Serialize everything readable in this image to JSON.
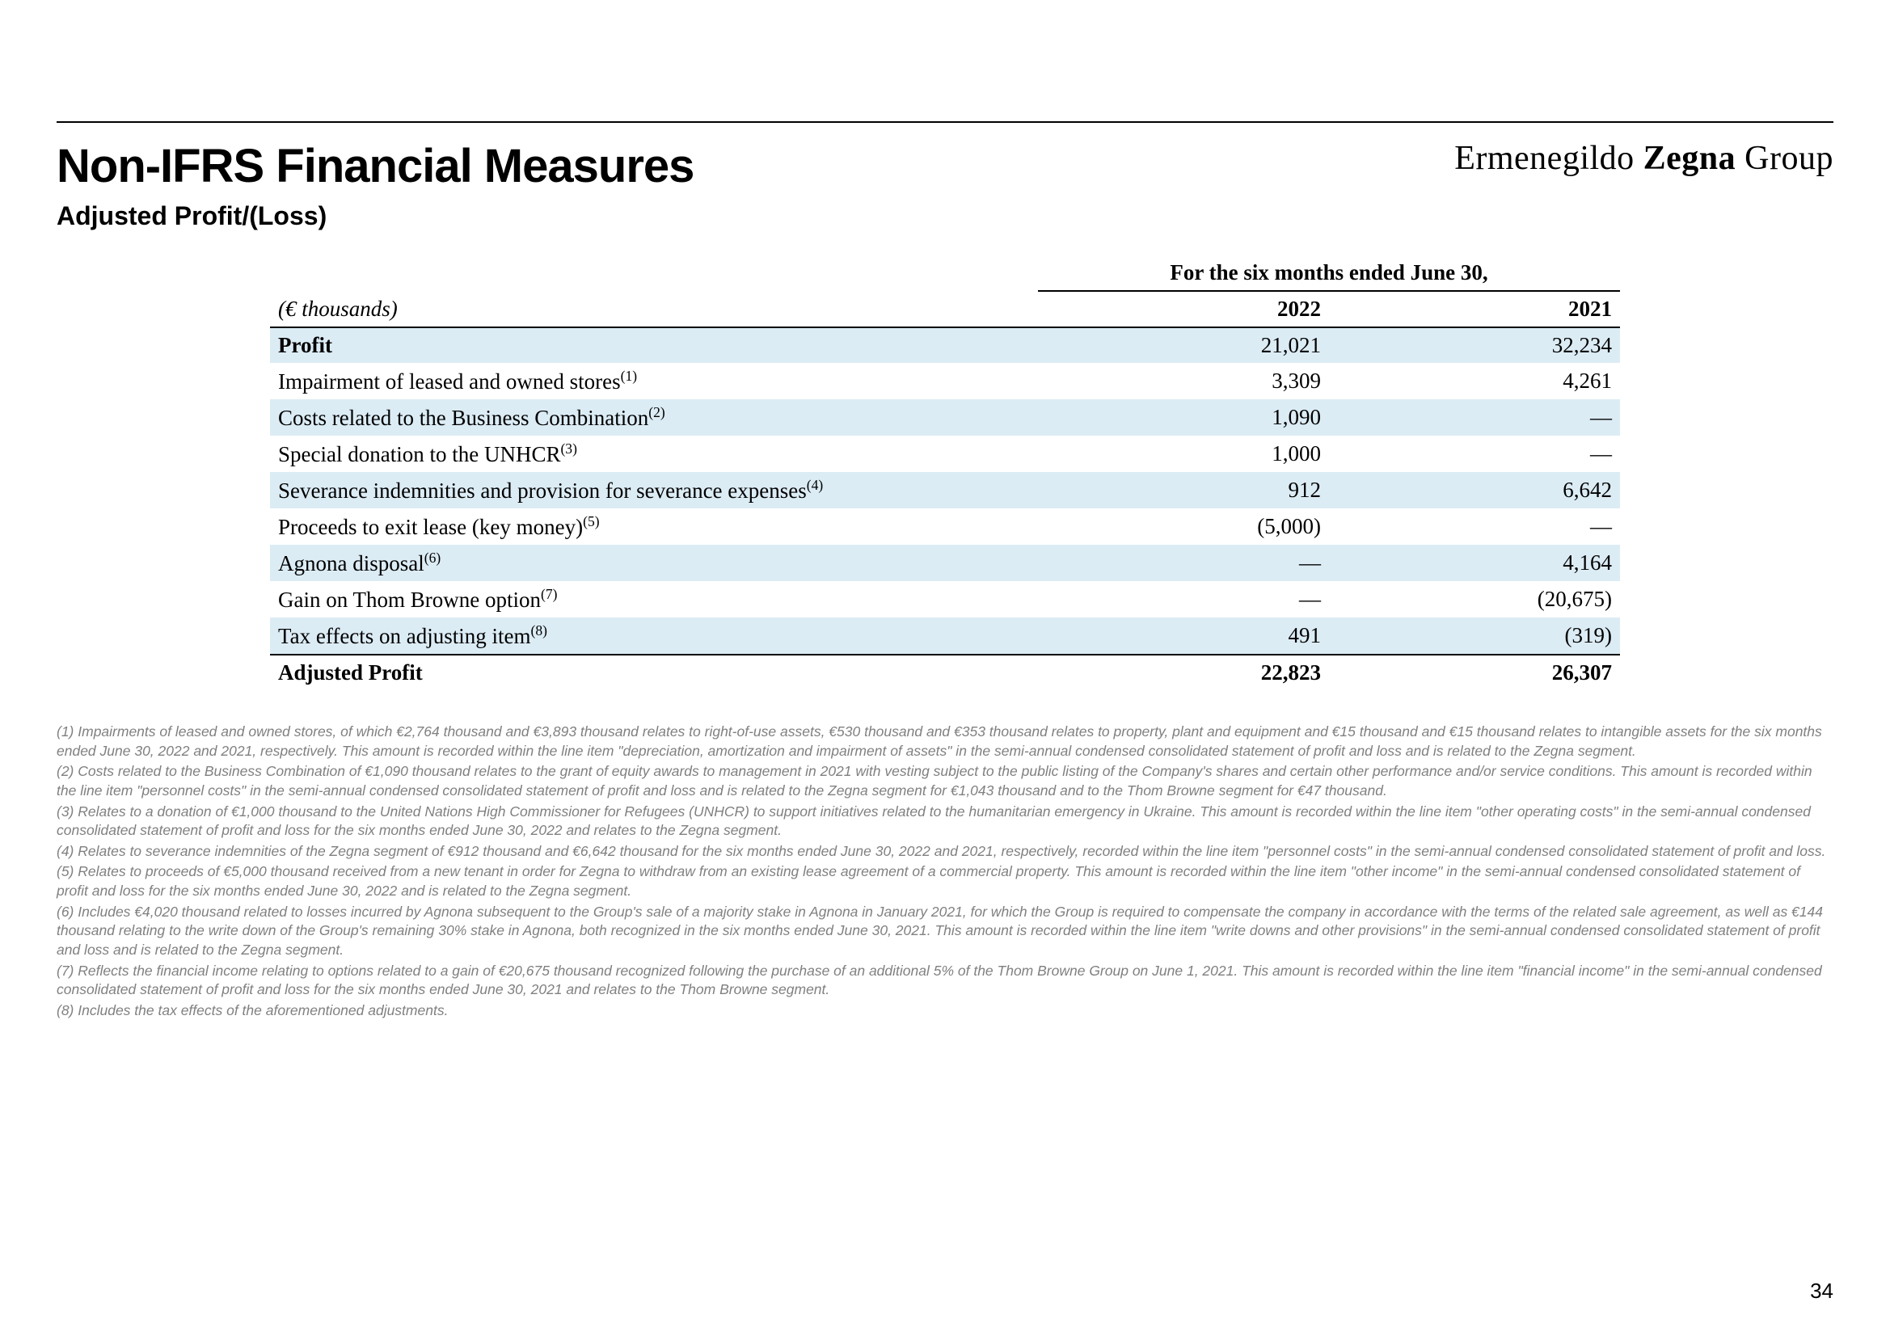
{
  "header": {
    "title": "Non-IFRS Financial Measures",
    "brand_light1": "Ermenegildo",
    "brand_bold": "Zegna",
    "brand_light2": "Group",
    "subtitle": "Adjusted Profit/(Loss)"
  },
  "table": {
    "period_label": "For the six months ended June 30,",
    "units_label": "(€ thousands)",
    "year1": "2022",
    "year2": "2021",
    "rows": [
      {
        "label": "Profit",
        "sup": "",
        "v1": "21,021",
        "v2": "32,234",
        "hl": true
      },
      {
        "label": "Impairment of leased and owned stores",
        "sup": "(1)",
        "v1": "3,309",
        "v2": "4,261",
        "hl": false
      },
      {
        "label": "Costs related to the Business Combination",
        "sup": "(2)",
        "v1": "1,090",
        "v2": "—",
        "hl": true
      },
      {
        "label": "Special donation to the UNHCR",
        "sup": "(3)",
        "v1": "1,000",
        "v2": "—",
        "hl": false
      },
      {
        "label": "Severance indemnities and provision for severance expenses",
        "sup": "(4)",
        "v1": "912",
        "v2": "6,642",
        "hl": true
      },
      {
        "label": "Proceeds to exit lease (key money)",
        "sup": "(5)",
        "v1": "(5,000)",
        "v2": "—",
        "hl": false
      },
      {
        "label": "Agnona disposal",
        "sup": "(6)",
        "v1": "—",
        "v2": "4,164",
        "hl": true
      },
      {
        "label": "Gain on Thom Browne option",
        "sup": "(7)",
        "v1": "—",
        "v2": "(20,675)",
        "hl": false
      },
      {
        "label": "Tax effects on adjusting item",
        "sup": "(8)",
        "v1": "491",
        "v2": "(319)",
        "hl": true
      }
    ],
    "total": {
      "label": "Adjusted Profit",
      "v1": "22,823",
      "v2": "26,307"
    }
  },
  "footnotes": {
    "n1": "(1) Impairments of leased and owned stores, of which €2,764 thousand and €3,893 thousand relates to right-of-use assets, €530 thousand and €353 thousand relates to property, plant and equipment and €15 thousand and €15 thousand relates to intangible assets for the six months ended June 30, 2022 and 2021, respectively. This amount is recorded within the line item \"depreciation, amortization and impairment of assets\" in the semi-annual condensed consolidated statement of profit and loss and is related to the Zegna segment.",
    "n2": "(2) Costs related to the Business Combination of €1,090 thousand relates to the grant of equity awards to management in 2021 with vesting subject to the public listing of the Company's shares and certain other performance and/or service conditions. This amount is recorded within the line item \"personnel costs\" in the semi-annual condensed consolidated statement of profit and loss and is related to the Zegna segment for €1,043 thousand and to the Thom Browne segment for €47 thousand.",
    "n3": "(3) Relates to a donation of €1,000 thousand to the United Nations High Commissioner for Refugees (UNHCR) to support initiatives related to the humanitarian emergency in Ukraine. This amount is recorded within the line item \"other operating costs\" in the semi-annual condensed consolidated statement of profit and loss for the six months ended June 30, 2022 and relates to the Zegna segment.",
    "n4": "(4) Relates to severance indemnities of the Zegna segment of €912 thousand and €6,642 thousand for the six months ended June 30, 2022 and 2021, respectively, recorded within the line item \"personnel costs\" in the semi-annual condensed consolidated statement of profit and loss.",
    "n5": "(5) Relates to proceeds of €5,000 thousand received from a new tenant in order for Zegna to withdraw from an existing lease agreement of a commercial property. This amount is recorded within the line item \"other income\" in the semi-annual condensed consolidated statement of profit and loss for the six months ended June 30, 2022 and is related to the Zegna segment.",
    "n6": "(6) Includes €4,020 thousand related to losses incurred by Agnona subsequent to the Group's sale of a majority stake in Agnona in January 2021, for which the Group is required to compensate the company in accordance with the terms of the related sale agreement, as well as €144 thousand relating to the write down of the Group's remaining 30% stake in Agnona, both recognized in the six months ended June 30, 2021. This amount is recorded within the line item \"write downs and other provisions\" in the semi-annual condensed consolidated statement of profit and loss and is related to the Zegna segment.",
    "n7": "(7) Reflects the financial income relating to options related to a gain of €20,675 thousand recognized following the purchase of an additional 5% of the Thom Browne Group on June 1, 2021. This amount is recorded within the line item \"financial income\" in the semi-annual condensed consolidated statement of profit and loss for the six months ended June 30, 2021 and relates to the Thom Browne segment.",
    "n8": "(8) Includes the tax effects of the aforementioned adjustments."
  },
  "page_number": "34"
}
